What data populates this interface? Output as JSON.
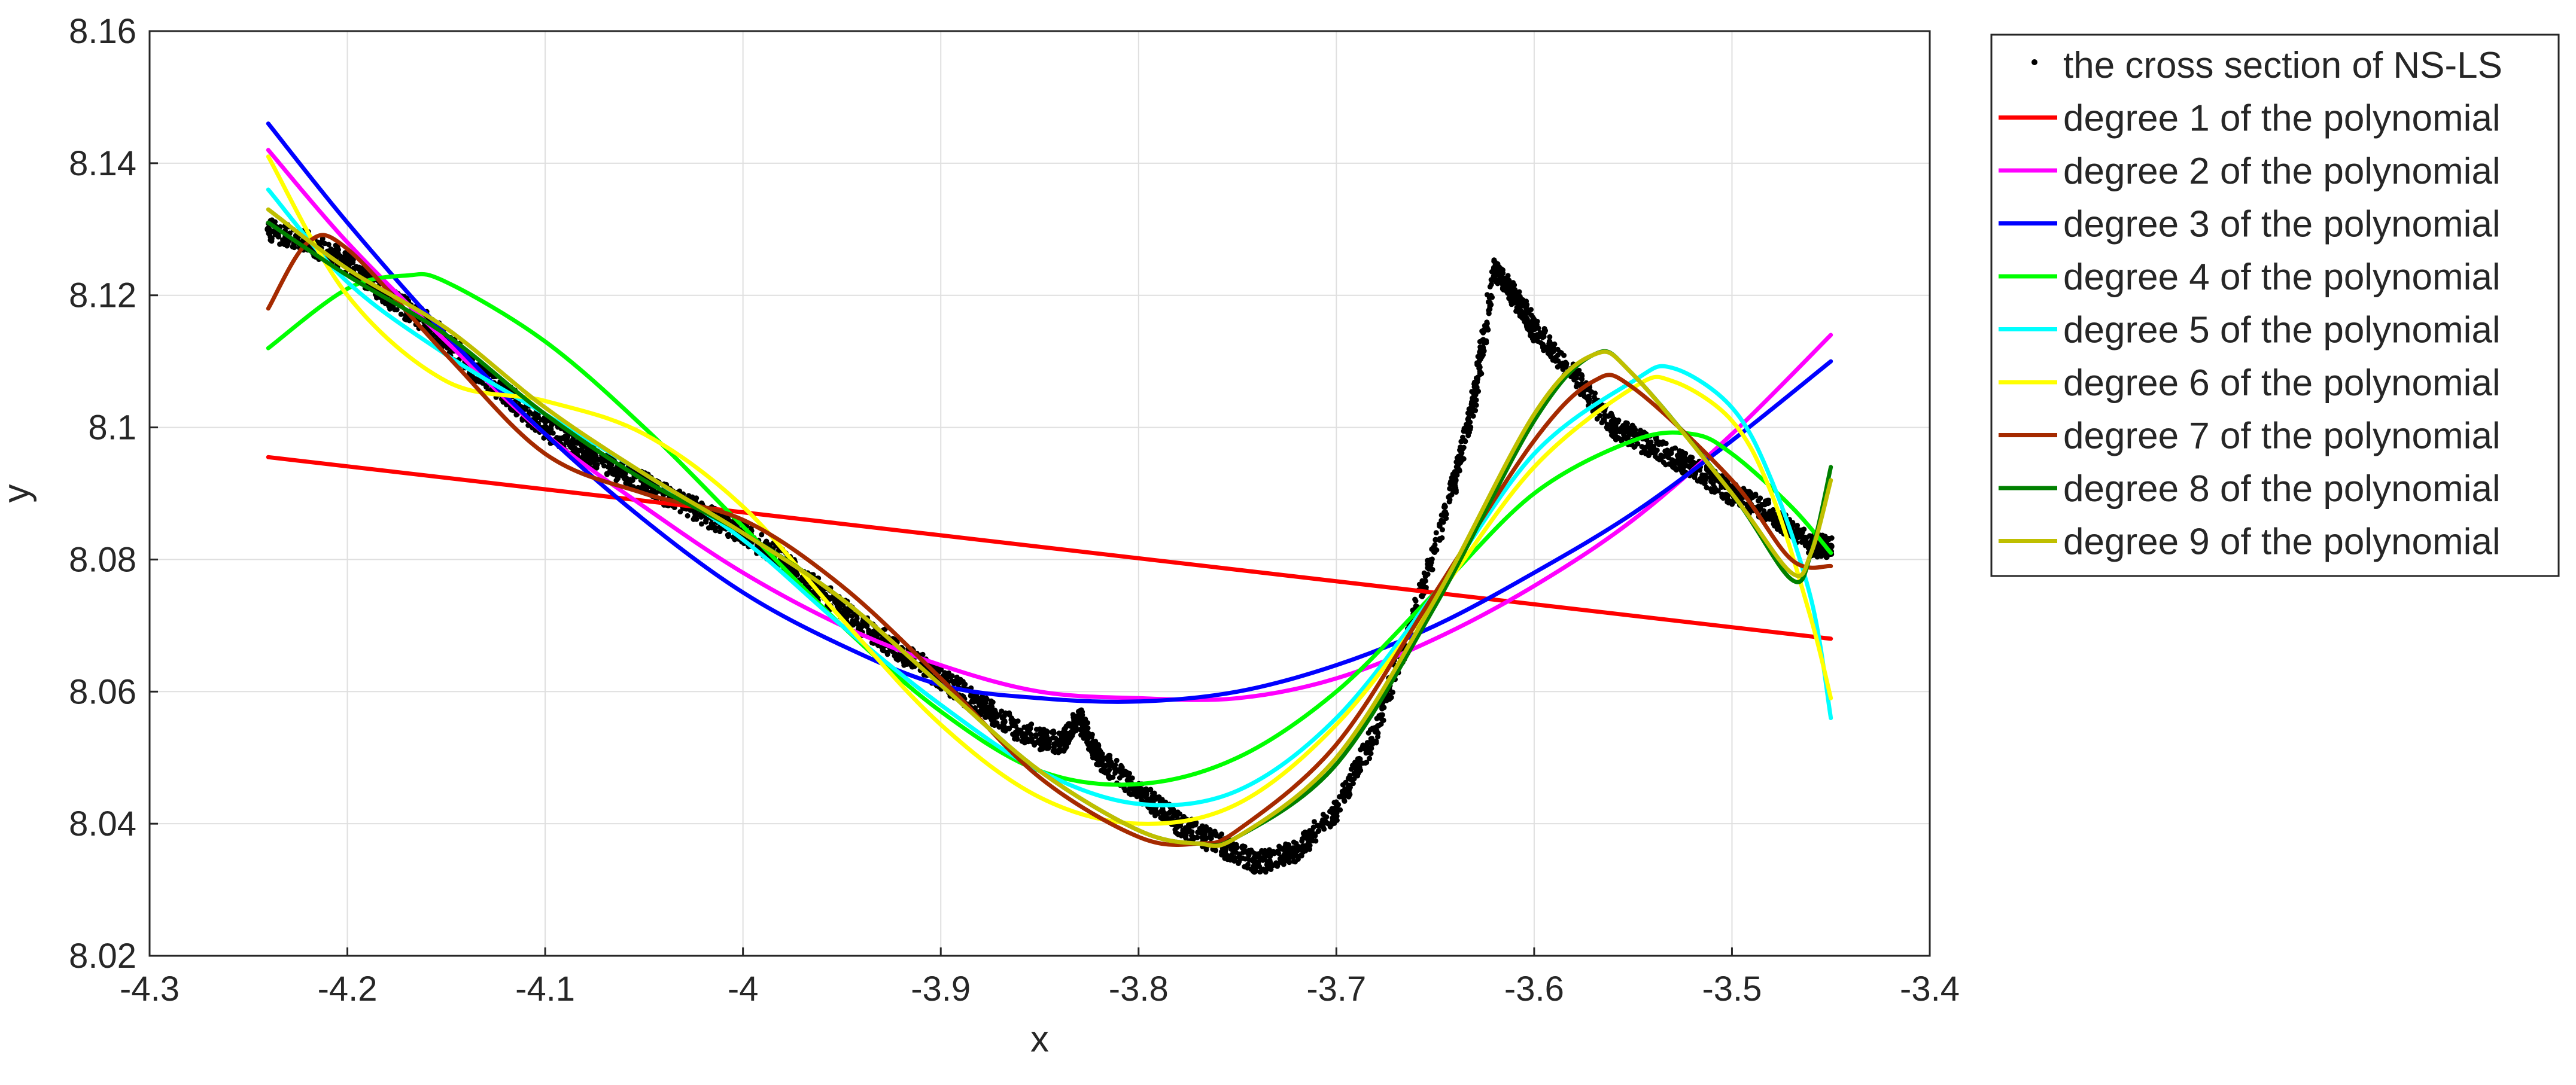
{
  "chart_data": {
    "type": "line",
    "title": "",
    "xlabel": "x",
    "ylabel": "y",
    "xlim": [
      -4.3,
      -3.4
    ],
    "ylim": [
      8.02,
      8.16
    ],
    "xticks": [
      -4.3,
      -4.2,
      -4.1,
      -4.0,
      -3.9,
      -3.8,
      -3.7,
      -3.6,
      -3.5,
      -3.4
    ],
    "yticks": [
      8.02,
      8.04,
      8.06,
      8.08,
      8.1,
      8.12,
      8.14,
      8.16
    ],
    "xtick_labels": [
      "-4.3",
      "-4.2",
      "-4.1",
      "-4",
      "-3.9",
      "-3.8",
      "-3.7",
      "-3.6",
      "-3.5",
      "-3.4"
    ],
    "ytick_labels": [
      "8.02",
      "8.04",
      "8.06",
      "8.08",
      "8.1",
      "8.12",
      "8.14",
      "8.16"
    ],
    "grid": true,
    "legend_position": "outside-top-right",
    "scatter": {
      "name": "the cross section of NS-LS",
      "color": "#000000",
      "x": [
        -4.24,
        -4.22,
        -4.2,
        -4.18,
        -4.16,
        -4.14,
        -4.12,
        -4.1,
        -4.08,
        -4.06,
        -4.04,
        -4.02,
        -4.0,
        -3.98,
        -3.96,
        -3.94,
        -3.92,
        -3.9,
        -3.88,
        -3.86,
        -3.84,
        -3.83,
        -3.82,
        -3.8,
        -3.78,
        -3.76,
        -3.74,
        -3.72,
        -3.7,
        -3.68,
        -3.66,
        -3.64,
        -3.63,
        -3.62,
        -3.61,
        -3.6,
        -3.58,
        -3.56,
        -3.54,
        -3.52,
        -3.5,
        -3.48,
        -3.46,
        -3.45
      ],
      "y": [
        8.13,
        8.128,
        8.125,
        8.12,
        8.116,
        8.11,
        8.105,
        8.1,
        8.096,
        8.093,
        8.09,
        8.087,
        8.084,
        8.08,
        8.075,
        8.07,
        8.066,
        8.062,
        8.058,
        8.054,
        8.052,
        8.056,
        8.05,
        8.045,
        8.04,
        8.037,
        8.034,
        8.036,
        8.042,
        8.054,
        8.072,
        8.092,
        8.105,
        8.124,
        8.12,
        8.115,
        8.108,
        8.1,
        8.097,
        8.094,
        8.09,
        8.087,
        8.082,
        8.082
      ]
    },
    "series": [
      {
        "name": "degree 1 of the polynomial",
        "color": "#ff0000",
        "x": [
          -4.24,
          -3.45
        ],
        "y": [
          8.0955,
          8.068
        ]
      },
      {
        "name": "degree 2 of the polynomial",
        "color": "#ff00ff",
        "x": [
          -4.24,
          -4.2,
          -4.15,
          -4.1,
          -4.05,
          -4.0,
          -3.95,
          -3.9,
          -3.85,
          -3.8,
          -3.75,
          -3.7,
          -3.65,
          -3.6,
          -3.55,
          -3.5,
          -3.45
        ],
        "y": [
          8.142,
          8.128,
          8.113,
          8.099,
          8.088,
          8.078,
          8.07,
          8.064,
          8.06,
          8.059,
          8.059,
          8.062,
          8.068,
          8.076,
          8.086,
          8.099,
          8.114
        ]
      },
      {
        "name": "degree 3 of the polynomial",
        "color": "#0000ff",
        "x": [
          -4.24,
          -4.2,
          -4.15,
          -4.1,
          -4.05,
          -4.0,
          -3.95,
          -3.9,
          -3.85,
          -3.8,
          -3.75,
          -3.7,
          -3.65,
          -3.6,
          -3.55,
          -3.5,
          -3.45
        ],
        "y": [
          8.146,
          8.131,
          8.114,
          8.099,
          8.086,
          8.075,
          8.067,
          8.061,
          8.059,
          8.0585,
          8.06,
          8.064,
          8.07,
          8.078,
          8.087,
          8.098,
          8.11
        ]
      },
      {
        "name": "degree 4 of the polynomial",
        "color": "#00ff00",
        "x": [
          -4.24,
          -4.2,
          -4.17,
          -4.15,
          -4.1,
          -4.05,
          -4.0,
          -3.95,
          -3.9,
          -3.85,
          -3.8,
          -3.75,
          -3.7,
          -3.65,
          -3.6,
          -3.55,
          -3.52,
          -3.5,
          -3.47,
          -3.45
        ],
        "y": [
          8.112,
          8.121,
          8.123,
          8.122,
          8.113,
          8.1,
          8.085,
          8.07,
          8.057,
          8.048,
          8.046,
          8.05,
          8.06,
          8.075,
          8.09,
          8.098,
          8.099,
          8.096,
          8.088,
          8.081
        ]
      },
      {
        "name": "degree 5 of the polynomial",
        "color": "#00ffff",
        "x": [
          -4.24,
          -4.2,
          -4.15,
          -4.1,
          -4.05,
          -4.0,
          -3.95,
          -3.9,
          -3.85,
          -3.8,
          -3.75,
          -3.7,
          -3.65,
          -3.6,
          -3.55,
          -3.53,
          -3.5,
          -3.48,
          -3.46,
          -3.45
        ],
        "y": [
          8.136,
          8.122,
          8.111,
          8.102,
          8.093,
          8.083,
          8.07,
          8.058,
          8.048,
          8.043,
          8.045,
          8.056,
          8.075,
          8.096,
          8.107,
          8.109,
          8.103,
          8.092,
          8.074,
          8.056
        ]
      },
      {
        "name": "degree 6 of the polynomial",
        "color": "#ffff00",
        "x": [
          -4.24,
          -4.2,
          -4.15,
          -4.1,
          -4.05,
          -4.0,
          -3.95,
          -3.9,
          -3.85,
          -3.8,
          -3.75,
          -3.7,
          -3.65,
          -3.6,
          -3.55,
          -3.53,
          -3.5,
          -3.48,
          -3.46,
          -3.45
        ],
        "y": [
          8.141,
          8.12,
          8.107,
          8.104,
          8.099,
          8.088,
          8.071,
          8.055,
          8.044,
          8.04,
          8.043,
          8.055,
          8.074,
          8.094,
          8.106,
          8.107,
          8.101,
          8.09,
          8.071,
          8.059
        ]
      },
      {
        "name": "degree 7 of the polynomial",
        "color": "#a52a00",
        "x": [
          -4.24,
          -4.22,
          -4.2,
          -4.15,
          -4.1,
          -4.05,
          -4.0,
          -3.95,
          -3.9,
          -3.85,
          -3.8,
          -3.77,
          -3.75,
          -3.7,
          -3.65,
          -3.6,
          -3.57,
          -3.55,
          -3.5,
          -3.47,
          -3.45
        ],
        "y": [
          8.118,
          8.128,
          8.127,
          8.111,
          8.096,
          8.09,
          8.086,
          8.076,
          8.062,
          8.047,
          8.038,
          8.037,
          8.039,
          8.052,
          8.075,
          8.098,
          8.107,
          8.106,
          8.092,
          8.08,
          8.079
        ]
      },
      {
        "name": "degree 8 of the polynomial",
        "color": "#008000",
        "x": [
          -4.24,
          -4.2,
          -4.15,
          -4.1,
          -4.05,
          -4.0,
          -3.95,
          -3.9,
          -3.85,
          -3.8,
          -3.77,
          -3.75,
          -3.7,
          -3.65,
          -3.6,
          -3.57,
          -3.55,
          -3.5,
          -3.47,
          -3.46,
          -3.45
        ],
        "y": [
          8.131,
          8.123,
          8.114,
          8.102,
          8.092,
          8.084,
          8.074,
          8.061,
          8.048,
          8.039,
          8.037,
          8.038,
          8.049,
          8.073,
          8.101,
          8.111,
          8.108,
          8.09,
          8.077,
          8.081,
          8.094
        ]
      },
      {
        "name": "degree 9 of the polynomial",
        "color": "#bfbf00",
        "x": [
          -4.24,
          -4.2,
          -4.15,
          -4.1,
          -4.05,
          -4.0,
          -3.95,
          -3.9,
          -3.85,
          -3.8,
          -3.77,
          -3.75,
          -3.7,
          -3.65,
          -3.6,
          -3.57,
          -3.55,
          -3.5,
          -3.47,
          -3.46,
          -3.45
        ],
        "y": [
          8.133,
          8.124,
          8.115,
          8.103,
          8.093,
          8.084,
          8.074,
          8.061,
          8.048,
          8.039,
          8.037,
          8.038,
          8.05,
          8.074,
          8.102,
          8.111,
          8.108,
          8.09,
          8.078,
          8.081,
          8.092
        ]
      }
    ]
  }
}
